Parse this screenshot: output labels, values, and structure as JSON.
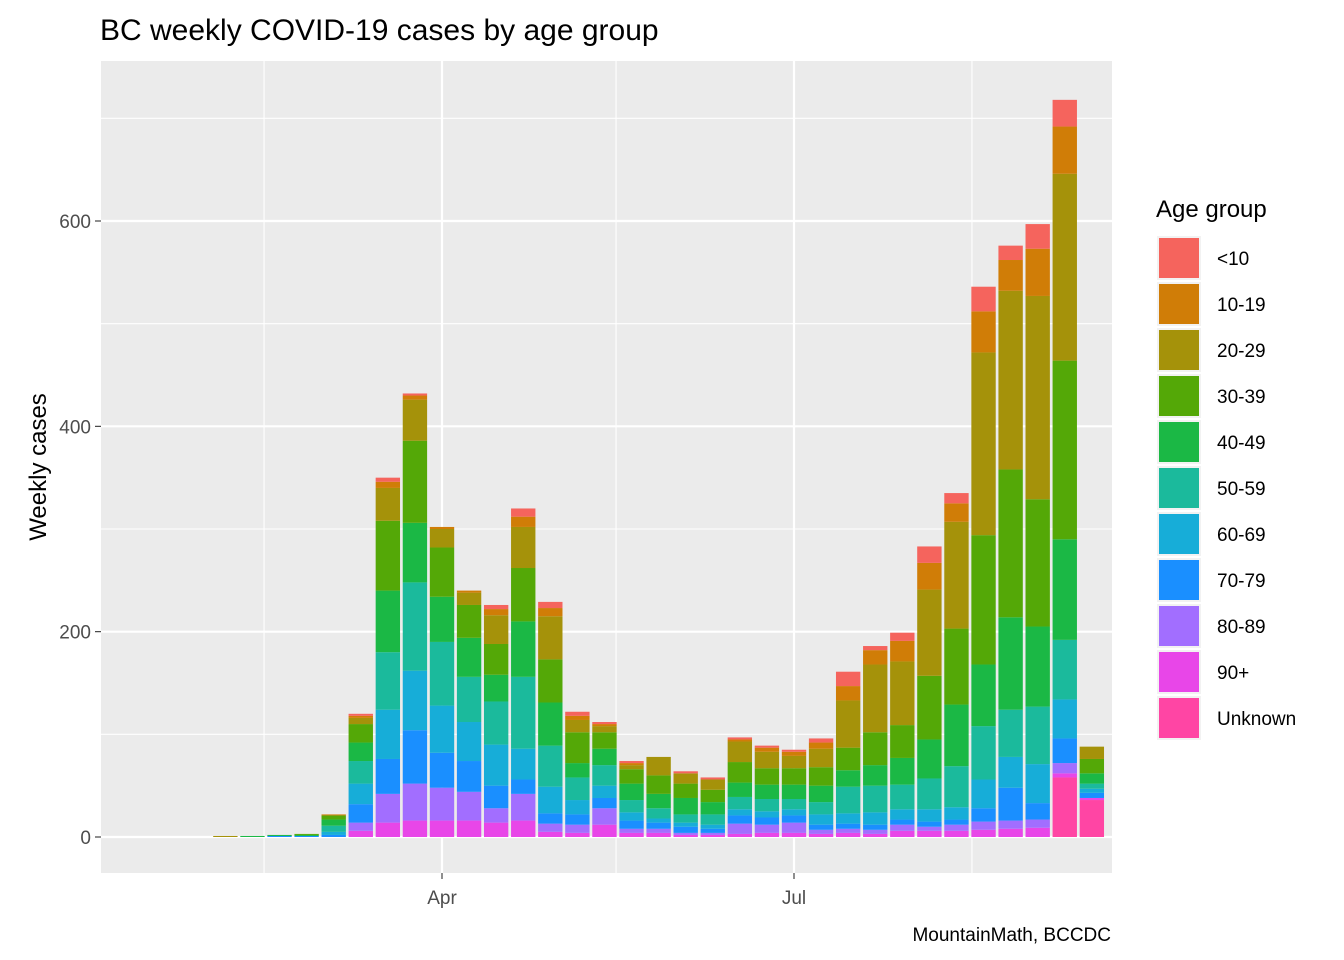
{
  "chart_data": {
    "type": "bar",
    "stacked": true,
    "title": "BC weekly COVID-19 cases by age group",
    "xlabel": "",
    "ylabel": "Weekly cases",
    "caption": "MountainMath, BCCDC",
    "legend_title": "Age group",
    "legend_position": "right",
    "grid": true,
    "ylim": [
      -35,
      740
    ],
    "x_ticks": [
      "Apr",
      "Jul"
    ],
    "y_ticks": [
      0,
      200,
      400,
      600
    ],
    "weeks": [
      "2020-01-22",
      "2020-01-29",
      "2020-02-05",
      "2020-02-12",
      "2020-02-19",
      "2020-02-26",
      "2020-03-04",
      "2020-03-11",
      "2020-03-18",
      "2020-03-25",
      "2020-04-01",
      "2020-04-08",
      "2020-04-15",
      "2020-04-22",
      "2020-04-29",
      "2020-05-06",
      "2020-05-13",
      "2020-05-20",
      "2020-05-27",
      "2020-06-03",
      "2020-06-10",
      "2020-06-17",
      "2020-06-24",
      "2020-07-01",
      "2020-07-08",
      "2020-07-15",
      "2020-07-22",
      "2020-07-29",
      "2020-08-05",
      "2020-08-12",
      "2020-08-19",
      "2020-08-26",
      "2020-09-02",
      "2020-09-09",
      "2020-09-16"
    ],
    "series": [
      {
        "name": "Unknown",
        "color": "#FF45A4",
        "values": [
          0,
          0,
          0,
          0,
          0,
          0,
          0,
          0,
          0,
          0,
          0,
          0,
          0,
          0,
          0,
          0,
          0,
          0,
          0,
          0,
          0,
          0,
          0,
          0,
          0,
          0,
          0,
          0,
          0,
          0,
          0,
          0,
          0,
          58,
          36
        ]
      },
      {
        "name": "90+",
        "color": "#E846E8",
        "values": [
          0,
          0,
          0,
          0,
          0,
          0,
          0,
          6,
          14,
          16,
          16,
          16,
          14,
          16,
          5,
          4,
          12,
          4,
          4,
          2,
          2,
          3,
          4,
          4,
          3,
          4,
          3,
          6,
          6,
          6,
          7,
          8,
          9,
          4,
          2
        ]
      },
      {
        "name": "80-89",
        "color": "#A26EFF",
        "values": [
          0,
          0,
          0,
          0,
          0,
          0,
          0,
          8,
          28,
          36,
          32,
          28,
          14,
          26,
          8,
          8,
          16,
          4,
          4,
          2,
          2,
          10,
          8,
          10,
          4,
          4,
          4,
          6,
          4,
          6,
          8,
          8,
          8,
          10,
          0
        ]
      },
      {
        "name": "70-79",
        "color": "#1A8FFF",
        "values": [
          0,
          0,
          0,
          0,
          1,
          1,
          2,
          18,
          34,
          52,
          34,
          30,
          22,
          14,
          10,
          10,
          10,
          8,
          6,
          6,
          4,
          8,
          7,
          7,
          5,
          5,
          5,
          5,
          5,
          5,
          13,
          32,
          16,
          24,
          5
        ]
      },
      {
        "name": "60-69",
        "color": "#17ADD8",
        "values": [
          0,
          0,
          0,
          0,
          0,
          0,
          3,
          20,
          48,
          58,
          46,
          38,
          40,
          30,
          26,
          14,
          12,
          8,
          4,
          4,
          4,
          6,
          6,
          6,
          10,
          10,
          12,
          10,
          12,
          12,
          28,
          30,
          38,
          38,
          4
        ]
      },
      {
        "name": "50-59",
        "color": "#1BBA9C",
        "values": [
          0,
          0,
          0,
          0,
          0,
          0,
          6,
          22,
          56,
          86,
          62,
          44,
          42,
          70,
          40,
          22,
          20,
          12,
          10,
          8,
          10,
          12,
          12,
          10,
          12,
          26,
          26,
          24,
          30,
          40,
          52,
          46,
          56,
          58,
          5
        ]
      },
      {
        "name": "40-49",
        "color": "#1BB845",
        "values": [
          0,
          0,
          0,
          1,
          1,
          1,
          6,
          18,
          60,
          58,
          44,
          38,
          26,
          54,
          42,
          14,
          16,
          16,
          14,
          16,
          12,
          14,
          14,
          14,
          16,
          16,
          20,
          26,
          38,
          60,
          60,
          90,
          78,
          98,
          10
        ]
      },
      {
        "name": "30-39",
        "color": "#54A807",
        "values": [
          0,
          0,
          0,
          0,
          0,
          1,
          4,
          18,
          68,
          80,
          48,
          32,
          30,
          52,
          42,
          30,
          16,
          14,
          18,
          14,
          12,
          20,
          16,
          16,
          18,
          22,
          32,
          32,
          62,
          74,
          126,
          144,
          124,
          174,
          14
        ]
      },
      {
        "name": "20-29",
        "color": "#A5920A",
        "values": [
          0,
          0,
          1,
          0,
          0,
          0,
          0,
          6,
          32,
          40,
          18,
          12,
          28,
          40,
          42,
          12,
          6,
          4,
          18,
          10,
          10,
          20,
          16,
          12,
          18,
          46,
          66,
          62,
          84,
          104,
          178,
          174,
          198,
          182,
          12
        ]
      },
      {
        "name": "10-19",
        "color": "#D07D07",
        "values": [
          0,
          0,
          0,
          0,
          0,
          0,
          1,
          2,
          6,
          4,
          2,
          2,
          6,
          10,
          8,
          4,
          2,
          2,
          0,
          0,
          0,
          2,
          4,
          4,
          6,
          14,
          14,
          20,
          26,
          18,
          40,
          30,
          46,
          46,
          0
        ]
      },
      {
        "name": "<10",
        "color": "#F5645D",
        "values": [
          0,
          0,
          0,
          0,
          0,
          0,
          0,
          2,
          4,
          2,
          0,
          0,
          4,
          8,
          6,
          4,
          2,
          2,
          0,
          2,
          2,
          2,
          2,
          2,
          4,
          14,
          4,
          8,
          16,
          10,
          24,
          14,
          24,
          26,
          0
        ]
      }
    ]
  }
}
